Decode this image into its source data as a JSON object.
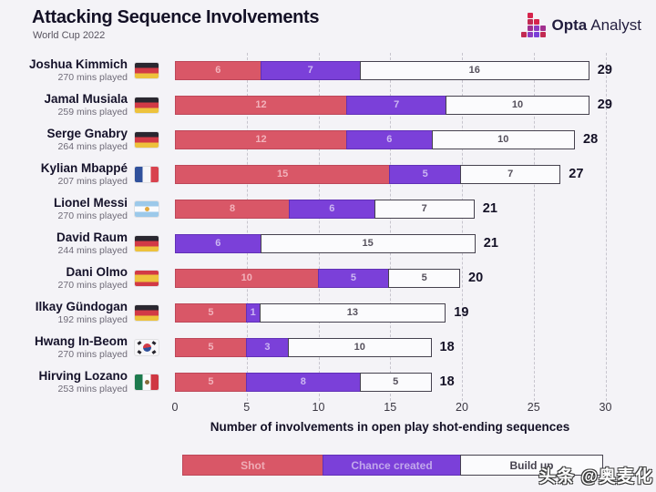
{
  "header": {
    "title": "Attacking Sequence Involvements",
    "subtitle": "World Cup 2022",
    "brand": {
      "bold": "Opta",
      "light": "Analyst",
      "icon": "opta-squares-icon"
    }
  },
  "colors": {
    "background": "#f4f3f7",
    "shot": "#d95767",
    "chance_created": "#7b40d9",
    "build_up": "#fbfbfd",
    "text_dark": "#141126",
    "gridline": "#c7c5ce"
  },
  "chart_data": {
    "type": "bar",
    "orientation": "horizontal-stacked",
    "title": "Attacking Sequence Involvements",
    "subtitle": "World Cup 2022",
    "xlabel": "Number of involvements in open play shot-ending sequences",
    "xlim": [
      0,
      30
    ],
    "xticks": [
      0,
      5,
      10,
      15,
      20,
      25,
      30
    ],
    "grid": "dashed-vertical-every-5",
    "legend_position": "bottom",
    "series_names": [
      "Shot",
      "Chance created",
      "Build up"
    ],
    "categories": [
      "Joshua Kimmich",
      "Jamal Musiala",
      "Serge Gnabry",
      "Kylian Mbappé",
      "Lionel Messi",
      "David Raum",
      "Dani Olmo",
      "Ilkay Gündogan",
      "Hwang In-Beom",
      "Hirving Lozano"
    ],
    "players": [
      {
        "name": "Joshua Kimmich",
        "mins": "270 mins played",
        "country": "Germany",
        "flag": "de",
        "shot": 6,
        "chance": 7,
        "build": 16,
        "total": 29
      },
      {
        "name": "Jamal Musiala",
        "mins": "259 mins played",
        "country": "Germany",
        "flag": "de",
        "shot": 12,
        "chance": 7,
        "build": 10,
        "total": 29
      },
      {
        "name": "Serge Gnabry",
        "mins": "264 mins played",
        "country": "Germany",
        "flag": "de",
        "shot": 12,
        "chance": 6,
        "build": 10,
        "total": 28
      },
      {
        "name": "Kylian Mbappé",
        "mins": "207 mins played",
        "country": "France",
        "flag": "fr",
        "shot": 15,
        "chance": 5,
        "build": 7,
        "total": 27
      },
      {
        "name": "Lionel Messi",
        "mins": "270 mins played",
        "country": "Argentina",
        "flag": "ar",
        "shot": 8,
        "chance": 6,
        "build": 7,
        "total": 21
      },
      {
        "name": "David Raum",
        "mins": "244 mins played",
        "country": "Germany",
        "flag": "de",
        "shot": 0,
        "chance": 6,
        "build": 15,
        "total": 21
      },
      {
        "name": "Dani Olmo",
        "mins": "270 mins played",
        "country": "Spain",
        "flag": "es",
        "shot": 10,
        "chance": 5,
        "build": 5,
        "total": 20
      },
      {
        "name": "Ilkay Gündogan",
        "mins": "192 mins played",
        "country": "Germany",
        "flag": "de",
        "shot": 5,
        "chance": 1,
        "build": 13,
        "total": 19
      },
      {
        "name": "Hwang In-Beom",
        "mins": "270 mins played",
        "country": "South Korea",
        "flag": "kr",
        "shot": 5,
        "chance": 3,
        "build": 10,
        "total": 18
      },
      {
        "name": "Hirving Lozano",
        "mins": "253 mins played",
        "country": "Mexico",
        "flag": "mx",
        "shot": 5,
        "chance": 8,
        "build": 5,
        "total": 18
      }
    ]
  },
  "legend": {
    "items": [
      {
        "key": "shot",
        "label": "Shot"
      },
      {
        "key": "chance",
        "label": "Chance created"
      },
      {
        "key": "build",
        "label": "Build up"
      }
    ]
  },
  "watermark": "头条 @奥麦化"
}
